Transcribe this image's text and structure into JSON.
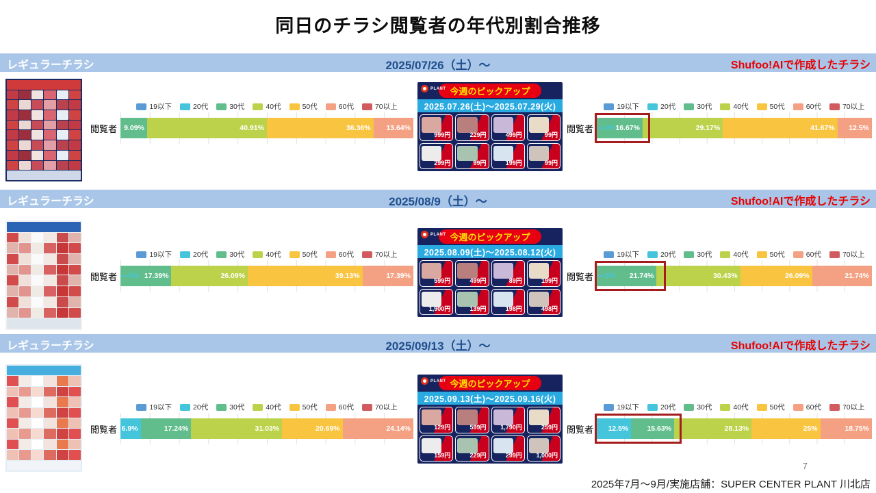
{
  "title": "同日のチラシ閲覧者の年代別割合推移",
  "row_label": "閲覧者",
  "age_groups": [
    "19以下",
    "20代",
    "30代",
    "40代",
    "50代",
    "60代",
    "70以上"
  ],
  "age_colors": [
    "#5B9BD5",
    "#45C5DC",
    "#62BD8C",
    "#BCD24A",
    "#F9C440",
    "#F4A183",
    "#D15B5E"
  ],
  "theme": {
    "section_header_bg": "#A9C6E8",
    "section_header_left_color": "#FFFFFF",
    "date_color": "#1F4E8C",
    "ai_label_color": "#E60000",
    "highlight_border": "#A61C1C",
    "pickup_banner_bg": "#E60012",
    "pickup_banner_text": "#FFE100",
    "pickup_date_bg": "#29ABE2"
  },
  "sections": [
    {
      "header": {
        "left": "レギュラーチラシ",
        "date": "2025/07/26（土）～",
        "right": "Shufoo!AIで作成したチラシ"
      },
      "left_chart": {
        "segments": [
          {
            "group": "30代",
            "value": 9.09,
            "label": "9.09%"
          },
          {
            "group": "40代",
            "value": 40.91,
            "label": "40.91%"
          },
          {
            "group": "50代",
            "value": 36.36,
            "label": "36.36%"
          },
          {
            "group": "60代",
            "value": 13.64,
            "label": "13.64%"
          }
        ]
      },
      "right_chart": {
        "leading_zero": {
          "group": "20代",
          "label": "0%"
        },
        "segments": [
          {
            "group": "30代",
            "value": 16.67,
            "label": "16.67%"
          },
          {
            "group": "40代",
            "value": 29.17,
            "label": "29.17%"
          },
          {
            "group": "50代",
            "value": 41.67,
            "label": "41.67%"
          },
          {
            "group": "60代",
            "value": 12.5,
            "label": "12.5%"
          }
        ],
        "highlight_to": 17.7
      },
      "pickup": {
        "brand": "PLANT",
        "title": "今週のピックアップ",
        "dates": "2025.07.26(土)～2025.07.29(火)",
        "prices": [
          "999円",
          "229円",
          "499円",
          "99円",
          "299円",
          "99円",
          "199円",
          "99円"
        ]
      }
    },
    {
      "header": {
        "left": "レギュラーチラシ",
        "date": "2025/08/9（土）～",
        "right": "Shufoo!AIで作成したチラシ"
      },
      "left_chart": {
        "leading_zero": {
          "group": "20代",
          "label": "0%"
        },
        "segments": [
          {
            "group": "30代",
            "value": 17.39,
            "label": "17.39%"
          },
          {
            "group": "40代",
            "value": 26.09,
            "label": "26.09%"
          },
          {
            "group": "50代",
            "value": 39.13,
            "label": "39.13%"
          },
          {
            "group": "60代",
            "value": 17.39,
            "label": "17.39%"
          }
        ],
        "trailing_zero": {
          "group": "70以上",
          "label": "0%"
        }
      },
      "right_chart": {
        "leading_zero": {
          "group": "20代",
          "label": "0%"
        },
        "segments": [
          {
            "group": "30代",
            "value": 21.74,
            "label": "21.74%"
          },
          {
            "group": "40代",
            "value": 30.43,
            "label": "30.43%"
          },
          {
            "group": "50代",
            "value": 26.09,
            "label": "26.09%"
          },
          {
            "group": "60代",
            "value": 21.74,
            "label": "21.74%"
          }
        ],
        "highlight_to": 23.5
      },
      "pickup": {
        "brand": "PLANT",
        "title": "今週のピックアップ",
        "dates": "2025.08.09(土)～2025.08.12(火)",
        "prices": [
          "599円",
          "499円",
          "89円",
          "199円",
          "1,900円",
          "139円",
          "198円",
          "498円"
        ]
      }
    },
    {
      "header": {
        "left": "レギュラーチラシ",
        "date": "2025/09/13（土）～",
        "right": "Shufoo!AIで作成したチラシ"
      },
      "left_chart": {
        "segments": [
          {
            "group": "20代",
            "value": 6.9,
            "label": "6.9%"
          },
          {
            "group": "30代",
            "value": 17.24,
            "label": "17.24%"
          },
          {
            "group": "40代",
            "value": 31.03,
            "label": "31.03%"
          },
          {
            "group": "50代",
            "value": 20.69,
            "label": "20.69%"
          },
          {
            "group": "60代",
            "value": 24.14,
            "label": "24.14%"
          }
        ],
        "trailing_zero": {
          "group": "70以上",
          "label": "0%"
        }
      },
      "right_chart": {
        "segments": [
          {
            "group": "20代",
            "value": 12.5,
            "label": "12.5%"
          },
          {
            "group": "30代",
            "value": 15.63,
            "label": "15.63%"
          },
          {
            "group": "40代",
            "value": 28.13,
            "label": "28.13%"
          },
          {
            "group": "50代",
            "value": 25,
            "label": "25%"
          },
          {
            "group": "60代",
            "value": 18.75,
            "label": "18.75%"
          }
        ],
        "highlight_to": 29
      },
      "pickup": {
        "brand": "PLANT",
        "title": "今週のピックアップ",
        "dates": "2025.09.13(土)～2025.09.16(火)",
        "prices": [
          "129円",
          "599円",
          "1,790円",
          "259円",
          "159円",
          "229円",
          "299円",
          "1,000円"
        ]
      }
    }
  ],
  "footer": {
    "page": "7",
    "note": "2025年7月～9月/実施店舗：SUPER CENTER PLANT 川北店"
  },
  "chart_data": [
    {
      "type": "bar",
      "orientation": "horizontal_stacked_100",
      "unit": "%",
      "title": "レギュラーチラシ 2025/07/26（土）～ 閲覧者年代別割合",
      "row": "閲覧者",
      "legend_position": "top",
      "grid": true,
      "categories": [
        "19以下",
        "20代",
        "30代",
        "40代",
        "50代",
        "60代",
        "70以上"
      ],
      "values": [
        0,
        0,
        9.09,
        40.91,
        36.36,
        13.64,
        0
      ]
    },
    {
      "type": "bar",
      "orientation": "horizontal_stacked_100",
      "unit": "%",
      "title": "Shufoo!AIで作成したチラシ 2025/07/26（土）～ 閲覧者年代別割合",
      "row": "閲覧者",
      "legend_position": "top",
      "grid": true,
      "categories": [
        "19以下",
        "20代",
        "30代",
        "40代",
        "50代",
        "60代",
        "70以上"
      ],
      "values": [
        0,
        0,
        16.67,
        29.17,
        41.67,
        12.5,
        0
      ],
      "annotation": "red box highlighting 30代 16.67%"
    },
    {
      "type": "bar",
      "orientation": "horizontal_stacked_100",
      "unit": "%",
      "title": "レギュラーチラシ 2025/08/9（土）～ 閲覧者年代別割合",
      "row": "閲覧者",
      "legend_position": "top",
      "grid": true,
      "categories": [
        "19以下",
        "20代",
        "30代",
        "40代",
        "50代",
        "60代",
        "70以上"
      ],
      "values": [
        0,
        0,
        17.39,
        26.09,
        39.13,
        17.39,
        0
      ]
    },
    {
      "type": "bar",
      "orientation": "horizontal_stacked_100",
      "unit": "%",
      "title": "Shufoo!AIで作成したチラシ 2025/08/9（土）～ 閲覧者年代別割合",
      "row": "閲覧者",
      "legend_position": "top",
      "grid": true,
      "categories": [
        "19以下",
        "20代",
        "30代",
        "40代",
        "50代",
        "60代",
        "70以上"
      ],
      "values": [
        0,
        0,
        21.74,
        30.43,
        26.09,
        21.74,
        0
      ],
      "annotation": "red box highlighting 30代 21.74%"
    },
    {
      "type": "bar",
      "orientation": "horizontal_stacked_100",
      "unit": "%",
      "title": "レギュラーチラシ 2025/09/13（土）～ 閲覧者年代別割合",
      "row": "閲覧者",
      "legend_position": "top",
      "grid": true,
      "categories": [
        "19以下",
        "20代",
        "30代",
        "40代",
        "50代",
        "60代",
        "70以上"
      ],
      "values": [
        0,
        6.9,
        17.24,
        31.03,
        20.69,
        24.14,
        0
      ]
    },
    {
      "type": "bar",
      "orientation": "horizontal_stacked_100",
      "unit": "%",
      "title": "Shufoo!AIで作成したチラシ 2025/09/13（土）～ 閲覧者年代別割合",
      "row": "閲覧者",
      "legend_position": "top",
      "grid": true,
      "categories": [
        "19以下",
        "20代",
        "30代",
        "40代",
        "50代",
        "60代",
        "70以上"
      ],
      "values": [
        0,
        12.5,
        15.63,
        28.13,
        25,
        18.75,
        0
      ],
      "annotation": "red box highlighting 20代 12.5% and 30代 15.63%"
    }
  ]
}
